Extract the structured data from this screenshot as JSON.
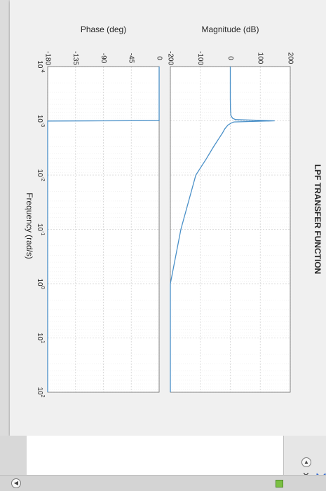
{
  "chart_data": {
    "type": "line",
    "title": "LPF TRANSFER FUNCTION",
    "xlabel": "Frequency  (rad/s)",
    "x_scale": "log",
    "xlim": [
      0.0001,
      100
    ],
    "x_tick_labels": [
      "10^-4",
      "10^-3",
      "10^-2",
      "10^-1",
      "10^0",
      "10^1",
      "10^2"
    ],
    "line_color": "#4a90c8",
    "grid": true,
    "subplots": [
      {
        "name": "magnitude",
        "ylabel": "Magnitude (dB)",
        "ylim": [
          -200,
          200
        ],
        "y_ticks": [
          -200,
          -100,
          0,
          100,
          200
        ],
        "y_tick_labels": [
          "-200",
          "-100",
          "0",
          "100",
          "200"
        ],
        "series": [
          {
            "x": [
              0.0001,
              0.0002,
              0.0004,
              0.0006,
              0.0008,
              0.0009,
              0.00095,
              0.001,
              0.00105,
              0.0011,
              0.0012,
              0.0014,
              0.0017,
              0.002,
              0.003,
              0.005,
              0.01,
              0.1,
              1,
              10,
              100
            ],
            "y": [
              0,
              0,
              0,
              0.5,
              2,
              8,
              18,
              148,
              12,
              3,
              -8,
              -18,
              -27,
              -35,
              -56,
              -80,
              -115,
              -165,
              -200,
              -238,
              -270
            ]
          }
        ]
      },
      {
        "name": "phase",
        "ylabel": "Phase (deg)",
        "ylim": [
          -180,
          0
        ],
        "y_ticks": [
          -180,
          -135,
          -90,
          -45,
          0
        ],
        "y_tick_labels": [
          "-180",
          "-135",
          "-90",
          "-45",
          "0"
        ],
        "series": [
          {
            "x": [
              0.0001,
              0.00099,
              0.001,
              0.00101,
              100
            ],
            "y": [
              0,
              0,
              -90,
              -180,
              -180
            ]
          }
        ]
      }
    ]
  }
}
